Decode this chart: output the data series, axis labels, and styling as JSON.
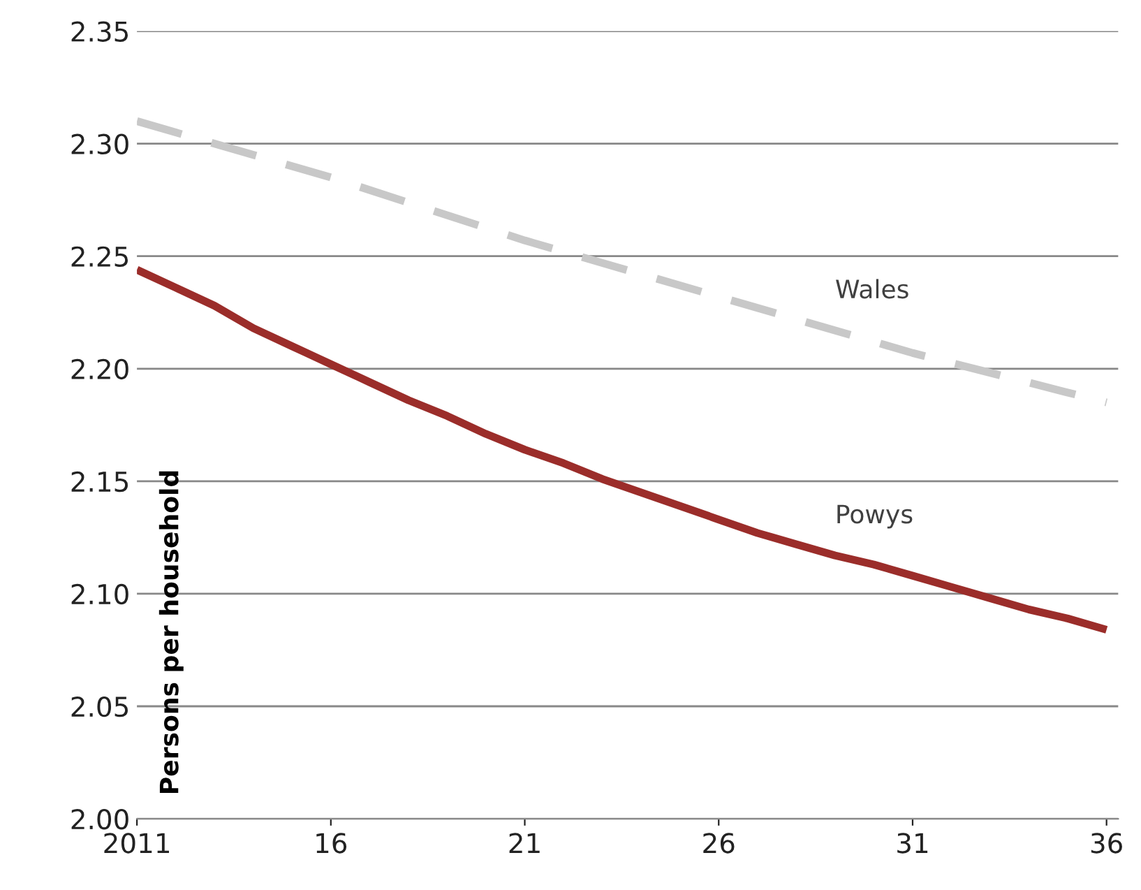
{
  "chart_data": {
    "type": "line",
    "ylabel": "Persons per household",
    "x": [
      2011,
      2012,
      2013,
      2014,
      2015,
      2016,
      2017,
      2018,
      2019,
      2020,
      2021,
      2022,
      2023,
      2024,
      2025,
      2026,
      2027,
      2028,
      2029,
      2030,
      2031,
      2032,
      2033,
      2034,
      2035,
      2036
    ],
    "series": [
      {
        "name": "Wales",
        "color": "#c8c8c8",
        "line_style": "dashed",
        "x": [
          2011,
          2016,
          2021,
          2026,
          2031,
          2036
        ],
        "values": [
          2.31,
          2.285,
          2.257,
          2.232,
          2.207,
          2.185
        ]
      },
      {
        "name": "Powys",
        "color": "#9b2d2a",
        "line_style": "solid",
        "values": [
          2.244,
          2.236,
          2.228,
          2.218,
          2.21,
          2.202,
          2.194,
          2.186,
          2.179,
          2.171,
          2.164,
          2.158,
          2.151,
          2.145,
          2.139,
          2.133,
          2.127,
          2.122,
          2.117,
          2.113,
          2.108,
          2.103,
          2.098,
          2.093,
          2.089,
          2.084
        ]
      }
    ],
    "xlim": [
      2011,
      2036.3
    ],
    "xticks": [
      {
        "value": 2011,
        "label": "2011"
      },
      {
        "value": 2016,
        "label": "16"
      },
      {
        "value": 2021,
        "label": "21"
      },
      {
        "value": 2026,
        "label": "26"
      },
      {
        "value": 2031,
        "label": "31"
      },
      {
        "value": 2036,
        "label": "36"
      }
    ],
    "ylim": [
      2.0,
      2.35
    ],
    "yticks": [
      {
        "value": 2.0,
        "label": "2.00"
      },
      {
        "value": 2.05,
        "label": "2.05"
      },
      {
        "value": 2.1,
        "label": "2.10"
      },
      {
        "value": 2.15,
        "label": "2.15"
      },
      {
        "value": 2.2,
        "label": "2.20"
      },
      {
        "value": 2.25,
        "label": "2.25"
      },
      {
        "value": 2.3,
        "label": "2.30"
      },
      {
        "value": 2.35,
        "label": "2.35"
      }
    ],
    "grid": "y",
    "legend": false,
    "marker": "none"
  }
}
